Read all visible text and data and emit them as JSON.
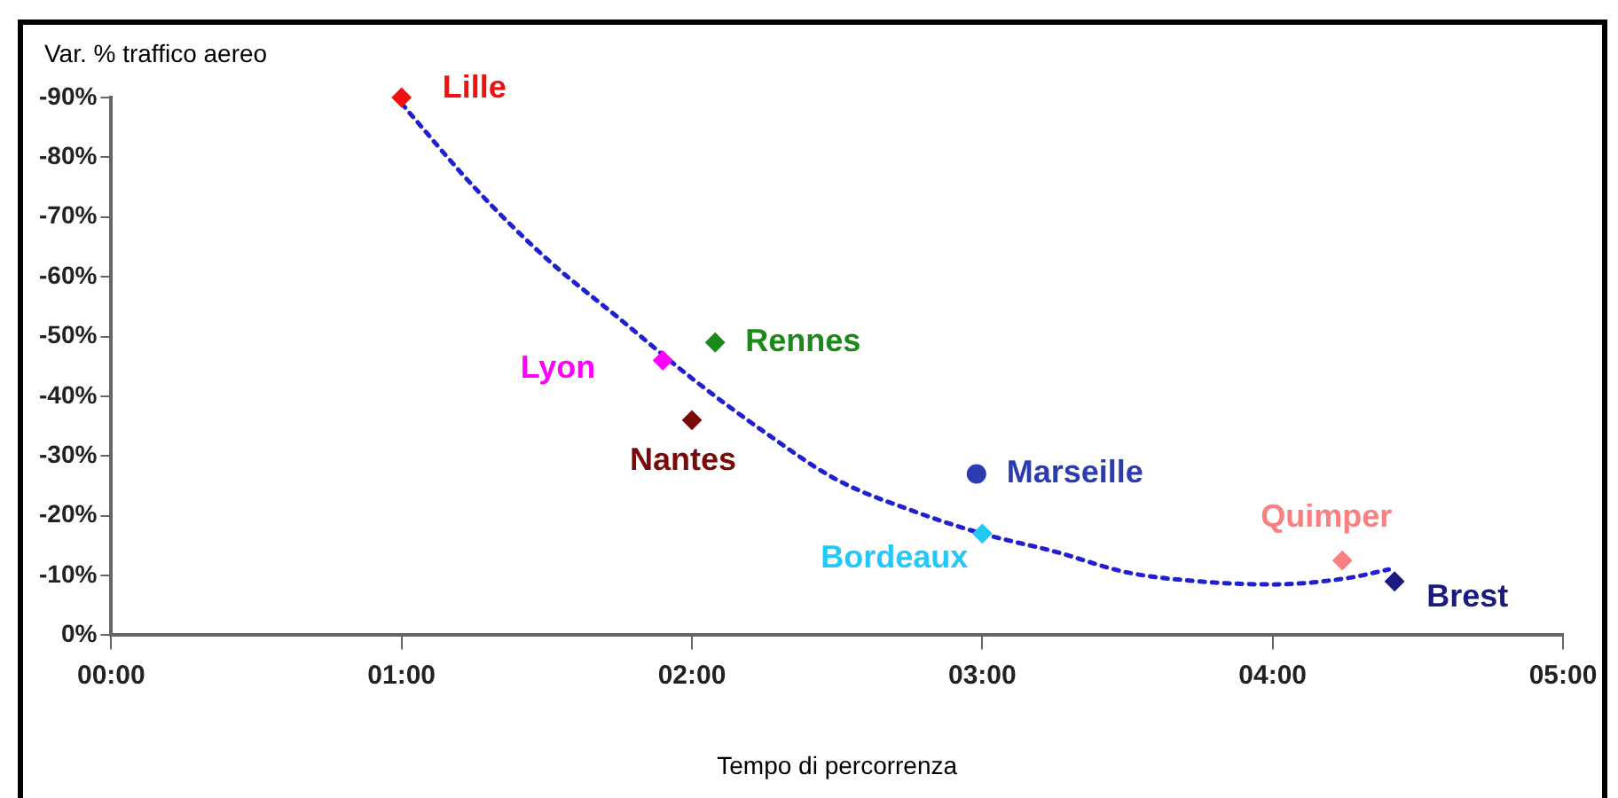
{
  "chart_data": {
    "type": "scatter",
    "xlabel": "Tempo di percorrenza",
    "ylabel": "Var. % traffico aereo",
    "xlim": [
      0,
      5
    ],
    "xticks": [
      {
        "value": 0,
        "label": "00:00"
      },
      {
        "value": 1,
        "label": "01:00"
      },
      {
        "value": 2,
        "label": "02:00"
      },
      {
        "value": 3,
        "label": "03:00"
      },
      {
        "value": 4,
        "label": "04:00"
      },
      {
        "value": 5,
        "label": "05:00"
      }
    ],
    "ylim": [
      0,
      -90
    ],
    "yticks": [
      {
        "value": 0,
        "label": "0%"
      },
      {
        "value": -10,
        "label": "-10%"
      },
      {
        "value": -20,
        "label": "-20%"
      },
      {
        "value": -30,
        "label": "-30%"
      },
      {
        "value": -40,
        "label": "-40%"
      },
      {
        "value": -50,
        "label": "-50%"
      },
      {
        "value": -60,
        "label": "-60%"
      },
      {
        "value": -70,
        "label": "-70%"
      },
      {
        "value": -80,
        "label": "-80%"
      },
      {
        "value": -90,
        "label": "-90%"
      }
    ],
    "grid": false,
    "legend": false,
    "marker": "diamond",
    "series": [
      {
        "name": "Lille",
        "color": "#ee1111",
        "x": [
          1.0
        ],
        "values": [
          -90
        ]
      },
      {
        "name": "Lyon",
        "color": "#ff00ff",
        "x": [
          1.9
        ],
        "values": [
          -46
        ]
      },
      {
        "name": "Rennes",
        "color": "#1a8a1a",
        "x": [
          2.08
        ],
        "values": [
          -49
        ]
      },
      {
        "name": "Nantes",
        "color": "#7a0a0a",
        "x": [
          2.0
        ],
        "values": [
          -36
        ]
      },
      {
        "name": "Marseille",
        "color": "#2a3cb0",
        "marker": "circle",
        "x": [
          2.98
        ],
        "values": [
          -27
        ]
      },
      {
        "name": "Bordeaux",
        "color": "#22c8f8",
        "x": [
          3.0
        ],
        "values": [
          -17
        ]
      },
      {
        "name": "Quimper",
        "color": "#f88080",
        "x": [
          4.24
        ],
        "values": [
          -12.5
        ]
      },
      {
        "name": "Brest",
        "color": "#1a1a80",
        "x": [
          4.42
        ],
        "values": [
          -9
        ]
      },
      {
        "type": "line",
        "color": "#2020d0",
        "line_style": "dotted",
        "marker": "none",
        "x": [
          1.0,
          1.25,
          1.5,
          1.75,
          2.0,
          2.25,
          2.5,
          2.75,
          3.0,
          3.25,
          3.5,
          3.75,
          4.0,
          4.25,
          4.4
        ],
        "values": [
          -89,
          -75,
          -63,
          -53,
          -43,
          -34,
          -26,
          -21,
          -17,
          -14,
          -10.5,
          -9,
          -8.5,
          -9.5,
          -11
        ]
      }
    ]
  }
}
